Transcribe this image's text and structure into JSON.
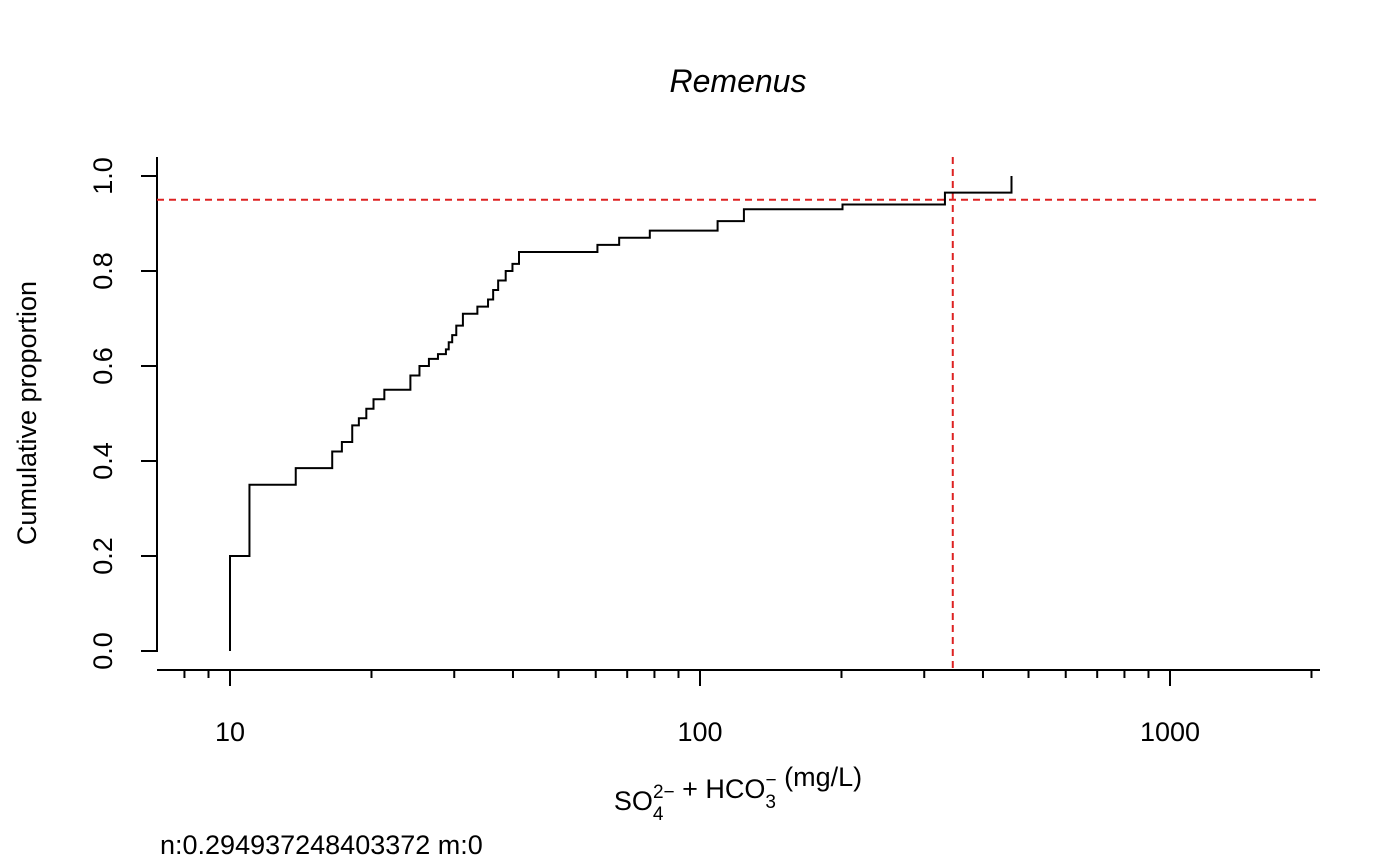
{
  "chart_data": {
    "type": "line",
    "subtype": "empirical cumulative distribution (step)",
    "title": "Remenus",
    "xlabel": {
      "parts": [
        {
          "text": "SO",
          "sup": "2−",
          "sub": "4"
        },
        {
          "text": " + HCO",
          "sup": "−",
          "sub": "3"
        },
        {
          "text": " (mg/L)"
        }
      ]
    },
    "ylabel": "Cumulative proportion",
    "x_scale": "log10",
    "xlim": [
      7,
      2000
    ],
    "ylim": [
      0,
      1
    ],
    "x_major_ticks": [
      10,
      100,
      1000
    ],
    "x_tick_labels": [
      "10",
      "100",
      "1000"
    ],
    "x_minor_ticks": [
      8,
      9,
      20,
      30,
      40,
      50,
      60,
      70,
      80,
      90,
      200,
      300,
      400,
      500,
      600,
      700,
      800,
      900,
      2000
    ],
    "y_ticks": [
      0,
      0.2,
      0.4,
      0.6,
      0.8,
      1.0
    ],
    "y_tick_labels": [
      "0.0",
      "0.2",
      "0.4",
      "0.6",
      "0.8",
      "1.0"
    ],
    "series": [
      {
        "color": "#000000",
        "x": [
          10,
          11,
          13.8,
          16.5,
          17.3,
          18.2,
          18.8,
          19.5,
          20.2,
          21.3,
          24.2,
          25.3,
          26.5,
          27.7,
          28.8,
          29.2,
          29.7,
          30.3,
          31.3,
          33.6,
          35.4,
          36.3,
          37.2,
          38.6,
          39.9,
          41.2,
          60.5,
          67.3,
          78.2,
          109,
          124,
          201,
          332,
          460
        ],
        "y": [
          0.2,
          0.35,
          0.385,
          0.42,
          0.44,
          0.475,
          0.49,
          0.51,
          0.53,
          0.55,
          0.58,
          0.6,
          0.615,
          0.625,
          0.635,
          0.65,
          0.665,
          0.685,
          0.71,
          0.725,
          0.74,
          0.76,
          0.78,
          0.8,
          0.815,
          0.84,
          0.855,
          0.87,
          0.885,
          0.905,
          0.93,
          0.94,
          0.965,
          1.0
        ]
      }
    ],
    "reference_lines": {
      "color": "#dd2222",
      "style": "dashed",
      "horizontal_y": 0.95,
      "vertical_x": 345
    },
    "footnote": "n:0.294937248403372 m:0"
  }
}
